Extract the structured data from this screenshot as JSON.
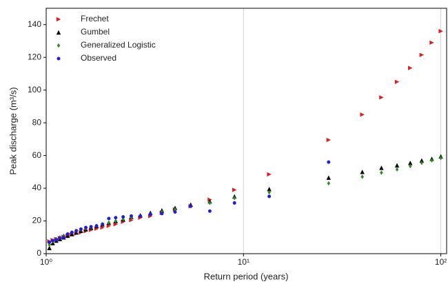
{
  "chart_data": {
    "type": "scatter",
    "x_label": "Return period (years)",
    "y_label": "Peak discharge (m³/s)",
    "x_scale": "log",
    "grid": "x",
    "legend": "upper left",
    "xlim": [
      1,
      107
    ],
    "ylim": [
      0,
      150
    ],
    "xticks": [
      {
        "value": 1,
        "label": "10⁰"
      },
      {
        "value": 10,
        "label": "10¹"
      },
      {
        "value": 100,
        "label": "10²"
      }
    ],
    "yticks": [
      0,
      20,
      40,
      60,
      80,
      100,
      120,
      140
    ],
    "series": [
      {
        "name": "Frechet",
        "color": "#e41a1c",
        "marker": "triangle-right",
        "x": [
          1.038,
          1.08,
          1.125,
          1.174,
          1.227,
          1.286,
          1.35,
          1.421,
          1.5,
          1.588,
          1.6875,
          1.8,
          1.929,
          2.077,
          2.25,
          2.4545,
          2.7,
          3,
          3.375,
          3.857,
          4.5,
          5.4,
          6.75,
          9,
          13.5,
          27,
          40,
          50,
          60,
          70,
          80,
          90,
          100
        ],
        "values": [
          7.5,
          8.3,
          9,
          9.6,
          10.3,
          11,
          11.6,
          12.3,
          13,
          13.8,
          14.5,
          15.3,
          16,
          17,
          18,
          19.5,
          20.5,
          22,
          23,
          25,
          27,
          29,
          33,
          39,
          48.5,
          69.5,
          85,
          95.5,
          105,
          113.5,
          121.5,
          129,
          136
        ]
      },
      {
        "name": "Gumbel",
        "color": "#000000",
        "marker": "triangle-up",
        "x": [
          1.038,
          1.08,
          1.125,
          1.174,
          1.227,
          1.286,
          1.35,
          1.421,
          1.5,
          1.588,
          1.6875,
          1.8,
          1.929,
          2.077,
          2.25,
          2.4545,
          2.7,
          3,
          3.375,
          3.857,
          4.5,
          5.4,
          6.75,
          9,
          13.5,
          27,
          40,
          50,
          60,
          70,
          80,
          90,
          100
        ],
        "values": [
          3.5,
          6.5,
          8,
          9,
          10,
          11,
          12,
          13,
          14,
          15,
          16,
          17,
          18,
          19,
          20,
          21,
          22.5,
          23.5,
          25,
          26.5,
          28,
          30,
          32,
          35,
          39.5,
          46.5,
          50,
          52.5,
          54,
          55.5,
          57,
          58,
          59.5
        ]
      },
      {
        "name": "Generalized Logistic",
        "color": "#2e8b22",
        "marker": "diamond",
        "x": [
          1.038,
          1.08,
          1.125,
          1.174,
          1.227,
          1.286,
          1.35,
          1.421,
          1.5,
          1.588,
          1.6875,
          1.8,
          1.929,
          2.077,
          2.25,
          2.4545,
          2.7,
          3,
          3.375,
          3.857,
          4.5,
          5.4,
          6.75,
          9,
          13.5,
          27,
          40,
          50,
          60,
          70,
          80,
          90,
          100
        ],
        "values": [
          5.5,
          7.5,
          9,
          10,
          11,
          12,
          13,
          13.8,
          14.6,
          15.4,
          16.2,
          17,
          18,
          19,
          20,
          21,
          22,
          23,
          24,
          25.5,
          27,
          29,
          31,
          34,
          37.5,
          43,
          47,
          49.5,
          51.5,
          53.5,
          55.5,
          57,
          58.5
        ]
      },
      {
        "name": "Observed",
        "color": "#1f1fd6",
        "marker": "circle",
        "x": [
          1.038,
          1.08,
          1.125,
          1.174,
          1.227,
          1.286,
          1.35,
          1.421,
          1.5,
          1.588,
          1.6875,
          1.8,
          1.929,
          2.077,
          2.25,
          2.4545,
          2.7,
          3,
          3.375,
          3.857,
          4.5,
          5.4,
          6.75,
          9,
          13.5,
          27
        ],
        "values": [
          7,
          8,
          8.5,
          9.5,
          10,
          12,
          13,
          14,
          15,
          16,
          16.5,
          17,
          18,
          21.5,
          22,
          22.5,
          23,
          23,
          24,
          24.5,
          25.5,
          29,
          26,
          31,
          35,
          56
        ]
      }
    ]
  }
}
